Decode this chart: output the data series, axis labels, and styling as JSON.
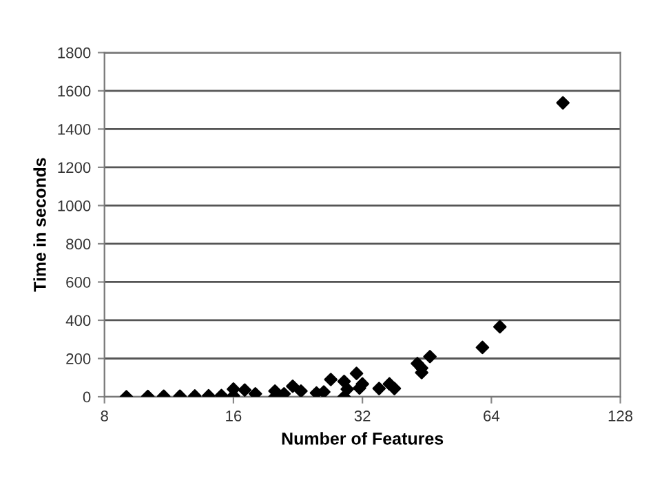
{
  "chart_data": {
    "type": "scatter",
    "xlabel": "Number of Features",
    "ylabel": "Time in seconds",
    "log": "x",
    "x": [
      9,
      10.1,
      11,
      12,
      13,
      14,
      15,
      16,
      16,
      17,
      18,
      20,
      20,
      21,
      22,
      23,
      25,
      26,
      27,
      29,
      29,
      29.5,
      31,
      31.5,
      32,
      35,
      37,
      38,
      43,
      44,
      44,
      46,
      61,
      67,
      94
    ],
    "series": [
      {
        "color": "#000000",
        "values": [
          0,
          2,
          3,
          3,
          4,
          5,
          6,
          5,
          40,
          35,
          15,
          0,
          30,
          15,
          55,
          30,
          20,
          25,
          90,
          0,
          80,
          40,
          122,
          45,
          67,
          43,
          67,
          43,
          174,
          126,
          150,
          210,
          258,
          366,
          1537
        ]
      }
    ],
    "xlim": [
      8,
      128
    ],
    "xticks": [
      8,
      16,
      32,
      64,
      128
    ],
    "ylim": [
      0,
      1800
    ],
    "yticks": [
      0,
      200,
      400,
      600,
      800,
      1000,
      1200,
      1400,
      1600,
      1800
    ],
    "grid": "y",
    "marker": "diamond",
    "legend": false
  }
}
